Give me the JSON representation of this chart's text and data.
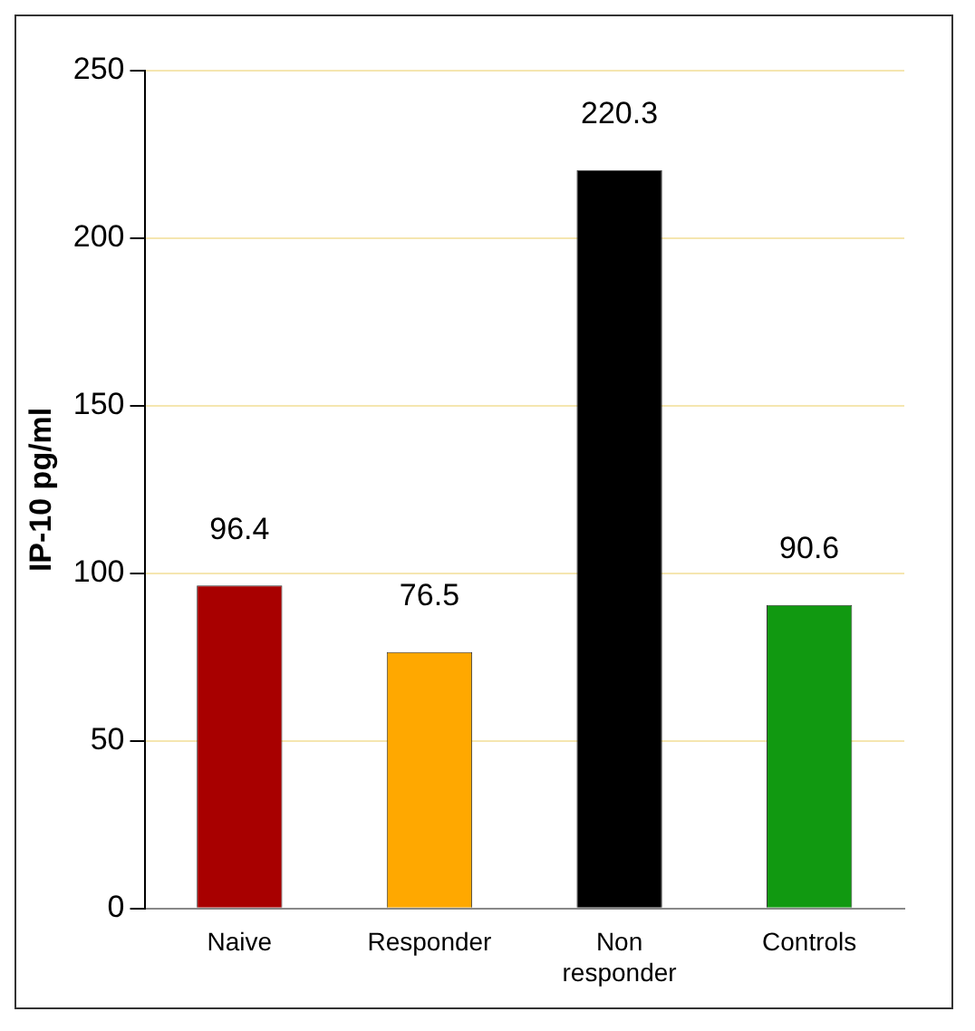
{
  "chart_data": {
    "type": "bar",
    "ylabel": "IP-10 pg/ml",
    "categories": [
      "Naive",
      "Responder",
      "Non responder",
      "Controls"
    ],
    "values": [
      96.4,
      76.5,
      220.3,
      90.6
    ],
    "colors": [
      "#a80000",
      "#ffa800",
      "#000000",
      "#119911"
    ],
    "ylim": [
      0,
      250
    ],
    "yticks": [
      0,
      50,
      100,
      150,
      200,
      250
    ],
    "grid": "y",
    "data_labels": true
  }
}
